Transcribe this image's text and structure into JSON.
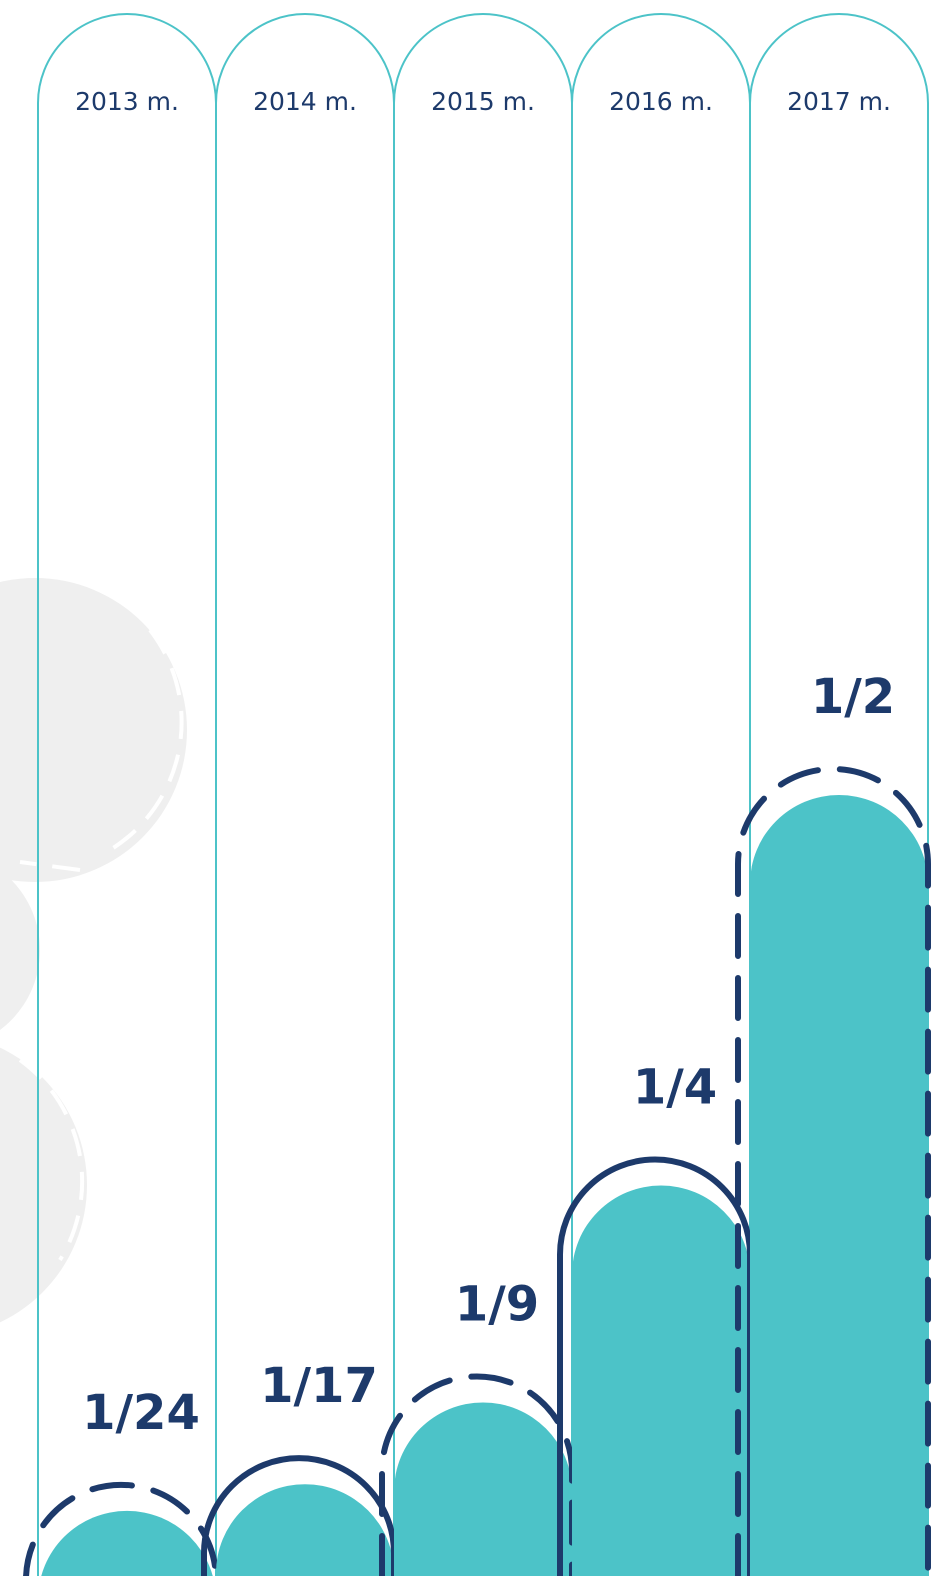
{
  "chart_data": {
    "type": "bar",
    "categories": [
      "2013 m.",
      "2014 m.",
      "2015 m.",
      "2016 m.",
      "2017 m."
    ],
    "values": [
      0.0417,
      0.0588,
      0.1111,
      0.25,
      0.5
    ],
    "value_labels": [
      "1/24",
      "1/17",
      "1/9",
      "1/4",
      "1/2"
    ],
    "color": "#4cc3c8",
    "ylim": [
      0,
      1
    ]
  }
}
